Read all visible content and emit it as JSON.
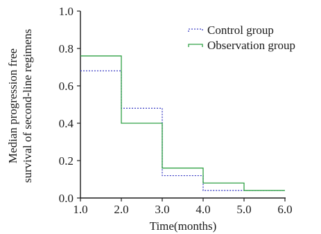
{
  "chart_data": {
    "type": "line",
    "step": true,
    "xlabel": "Time(months)",
    "ylabel": [
      "Median progression free",
      "survival of second-line regimens"
    ],
    "xlim": [
      1.0,
      6.0
    ],
    "ylim": [
      0.0,
      1.0
    ],
    "xticks": [
      "1.0",
      "2.0",
      "3.0",
      "4.0",
      "5.0",
      "6.0"
    ],
    "yticks": [
      "0.0",
      "0.2",
      "0.4",
      "0.6",
      "0.8",
      "1.0"
    ],
    "grid": false,
    "legend_position": "top-right",
    "series": [
      {
        "name": "Control group",
        "color": "#3b3fc4",
        "dash": "dotted",
        "x": [
          1.0,
          2.0,
          3.0,
          4.0,
          5.0,
          6.0
        ],
        "y": [
          0.68,
          0.48,
          0.12,
          0.04,
          0.04,
          0.04
        ]
      },
      {
        "name": "Observation group",
        "color": "#2ea043",
        "dash": "solid",
        "x": [
          1.0,
          2.0,
          3.0,
          4.0,
          5.0,
          6.0
        ],
        "y": [
          0.76,
          0.4,
          0.16,
          0.08,
          0.04,
          0.04
        ]
      }
    ]
  }
}
